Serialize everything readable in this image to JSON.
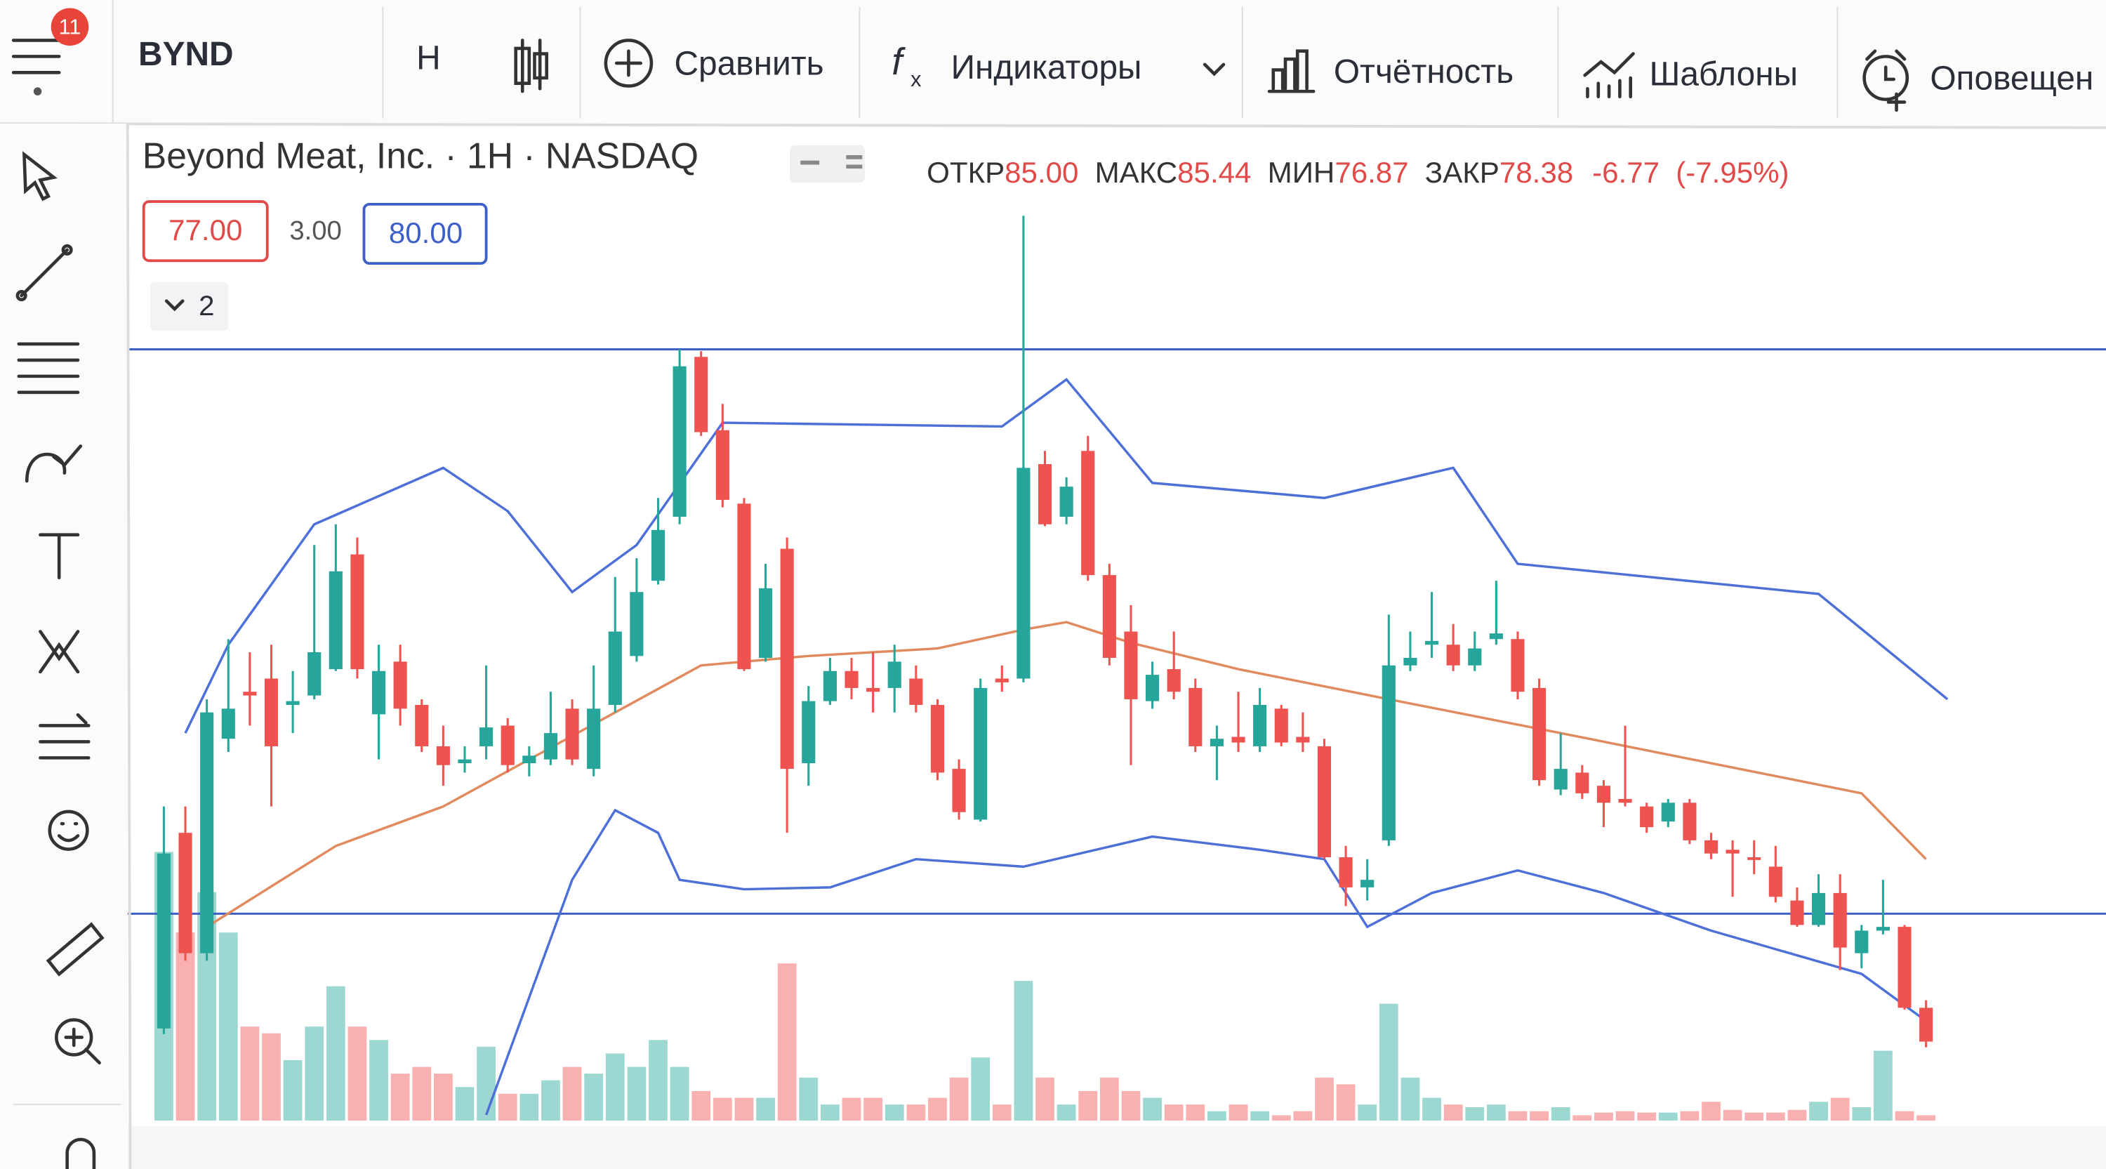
{
  "toolbar": {
    "badge": 11,
    "symbol": "BYND",
    "interval": "H",
    "compare": "Сравнить",
    "indicators": "Индикаторы",
    "financials": "Отчётность",
    "templates": "Шаблоны",
    "alerts": "Оповещен"
  },
  "legend": {
    "title": "Beyond Meat, Inc. · 1H · NASDAQ",
    "open_label": "ОТКР",
    "open": {
      "value": 85,
      "label": "85.00"
    },
    "high_label": "МАКС",
    "high": {
      "value": 85.44,
      "label": "85.44"
    },
    "low_label": "МИН",
    "low": {
      "value": 76.87,
      "label": "76.87"
    },
    "close_label": "ЗАКР",
    "close": {
      "value": 78.38,
      "label": "78.38"
    },
    "change": -6.77,
    "change_pct": {
      "value": -7.95,
      "label": "(-7.95%)"
    }
  },
  "range_tool": {
    "low": {
      "value": 77,
      "label": "77.00"
    },
    "diff": {
      "value": 3,
      "label": "3.00"
    },
    "high": {
      "value": 80,
      "label": "80.00"
    }
  },
  "collapse_count": 2,
  "chart_data": {
    "type": "candlestick",
    "ylim": [
      75.9,
      80.9
    ],
    "volume_ylim": [
      0,
      220
    ],
    "up_color": "#26a69a",
    "down_color": "#ef5350",
    "candles": [
      [
        76.39,
        77.57,
        76.36,
        77.32
      ],
      [
        77.43,
        77.57,
        76.75,
        76.79
      ],
      [
        76.79,
        78.14,
        76.75,
        78.07
      ],
      [
        77.93,
        78.46,
        77.86,
        78.09
      ],
      [
        78.18,
        78.39,
        78.0,
        78.16
      ],
      [
        78.25,
        78.43,
        77.57,
        77.89
      ],
      [
        78.11,
        78.29,
        77.96,
        78.13
      ],
      [
        78.16,
        78.96,
        78.14,
        78.39
      ],
      [
        78.3,
        79.07,
        78.29,
        78.82
      ],
      [
        78.91,
        79.0,
        78.25,
        78.3
      ],
      [
        78.06,
        78.43,
        77.82,
        78.29
      ],
      [
        78.34,
        78.43,
        78.0,
        78.09
      ],
      [
        78.11,
        78.14,
        77.86,
        77.89
      ],
      [
        77.89,
        78.0,
        77.68,
        77.79
      ],
      [
        77.8,
        77.89,
        77.75,
        77.82
      ],
      [
        77.89,
        78.32,
        77.82,
        77.99
      ],
      [
        78.0,
        78.04,
        77.75,
        77.79
      ],
      [
        77.8,
        77.89,
        77.73,
        77.84
      ],
      [
        77.82,
        78.18,
        77.79,
        77.96
      ],
      [
        78.09,
        78.14,
        77.79,
        77.82
      ],
      [
        77.77,
        78.32,
        77.73,
        78.09
      ],
      [
        78.11,
        78.79,
        78.07,
        78.5
      ],
      [
        78.37,
        78.89,
        78.34,
        78.71
      ],
      [
        78.77,
        79.21,
        78.75,
        79.04
      ],
      [
        79.11,
        80.0,
        79.07,
        79.91
      ],
      [
        79.96,
        79.99,
        79.54,
        79.56
      ],
      [
        79.57,
        79.71,
        79.16,
        79.2
      ],
      [
        79.18,
        79.21,
        78.29,
        78.3
      ],
      [
        78.36,
        78.86,
        78.34,
        78.73
      ],
      [
        78.94,
        79.0,
        77.43,
        77.77
      ],
      [
        77.8,
        78.21,
        77.68,
        78.13
      ],
      [
        78.13,
        78.36,
        78.11,
        78.29
      ],
      [
        78.29,
        78.36,
        78.14,
        78.2
      ],
      [
        78.2,
        78.39,
        78.07,
        78.18
      ],
      [
        78.2,
        78.43,
        78.07,
        78.34
      ],
      [
        78.25,
        78.32,
        78.07,
        78.11
      ],
      [
        78.11,
        78.14,
        77.71,
        77.75
      ],
      [
        77.77,
        77.82,
        77.5,
        77.54
      ],
      [
        77.5,
        78.25,
        77.49,
        78.2
      ],
      [
        78.25,
        78.32,
        78.18,
        78.23
      ],
      [
        78.25,
        80.71,
        78.23,
        79.37
      ],
      [
        79.39,
        79.46,
        79.06,
        79.07
      ],
      [
        79.11,
        79.32,
        79.07,
        79.27
      ],
      [
        79.46,
        79.54,
        78.77,
        78.8
      ],
      [
        78.8,
        78.86,
        78.32,
        78.36
      ],
      [
        78.5,
        78.64,
        77.79,
        78.14
      ],
      [
        78.13,
        78.34,
        78.09,
        78.27
      ],
      [
        78.3,
        78.5,
        78.14,
        78.18
      ],
      [
        78.2,
        78.25,
        77.86,
        77.89
      ],
      [
        77.89,
        78.0,
        77.71,
        77.93
      ],
      [
        77.94,
        78.18,
        77.86,
        77.91
      ],
      [
        77.89,
        78.2,
        77.86,
        78.11
      ],
      [
        78.09,
        78.11,
        77.89,
        77.91
      ],
      [
        77.94,
        78.07,
        77.86,
        77.91
      ],
      [
        77.89,
        77.93,
        77.29,
        77.3
      ],
      [
        77.3,
        77.36,
        77.04,
        77.14
      ],
      [
        77.14,
        77.29,
        77.07,
        77.18
      ],
      [
        77.39,
        78.59,
        77.36,
        78.32
      ],
      [
        78.32,
        78.5,
        78.29,
        78.36
      ],
      [
        78.43,
        78.71,
        78.36,
        78.45
      ],
      [
        78.43,
        78.54,
        78.29,
        78.32
      ],
      [
        78.32,
        78.5,
        78.29,
        78.41
      ],
      [
        78.46,
        78.77,
        78.43,
        78.49
      ],
      [
        78.46,
        78.5,
        78.14,
        78.18
      ],
      [
        78.2,
        78.25,
        77.68,
        77.71
      ],
      [
        77.66,
        77.96,
        77.63,
        77.77
      ],
      [
        77.75,
        77.79,
        77.61,
        77.64
      ],
      [
        77.68,
        77.71,
        77.46,
        77.59
      ],
      [
        77.61,
        78.0,
        77.57,
        77.59
      ],
      [
        77.57,
        77.59,
        77.43,
        77.46
      ],
      [
        77.49,
        77.61,
        77.46,
        77.59
      ],
      [
        77.59,
        77.61,
        77.37,
        77.39
      ],
      [
        77.39,
        77.43,
        77.29,
        77.32
      ],
      [
        77.34,
        77.39,
        77.09,
        77.32
      ],
      [
        77.3,
        77.39,
        77.21,
        77.29
      ],
      [
        77.25,
        77.36,
        77.06,
        77.09
      ],
      [
        77.07,
        77.14,
        76.93,
        76.94
      ],
      [
        76.94,
        77.21,
        76.93,
        77.11
      ],
      [
        77.11,
        77.21,
        76.7,
        76.82
      ],
      [
        76.79,
        76.94,
        76.71,
        76.91
      ],
      [
        76.91,
        77.18,
        76.89,
        76.93
      ],
      [
        76.93,
        76.94,
        76.49,
        76.5
      ],
      [
        76.5,
        76.54,
        76.29,
        76.32
      ]
    ],
    "volumes": [
      200,
      140,
      170,
      140,
      70,
      65,
      45,
      70,
      100,
      70,
      60,
      35,
      40,
      35,
      25,
      55,
      20,
      20,
      30,
      40,
      35,
      50,
      40,
      60,
      40,
      22,
      17,
      17,
      17,
      117,
      32,
      12,
      17,
      17,
      12,
      12,
      17,
      32,
      47,
      12,
      104,
      32,
      12,
      22,
      32,
      22,
      17,
      12,
      12,
      7,
      12,
      7,
      4,
      7,
      32,
      27,
      12,
      87,
      32,
      17,
      12,
      10,
      12,
      7,
      7,
      10,
      4,
      6,
      7,
      6,
      6,
      7,
      14,
      8,
      6,
      6,
      8,
      14,
      17,
      10,
      52,
      7,
      4
    ],
    "bands": [
      {
        "color": "#4d6fd8",
        "x": [
          1,
          3,
          7,
          13,
          16,
          19,
          22,
          26,
          39,
          42,
          46,
          54,
          60,
          63,
          77,
          83
        ],
        "values": [
          77.96,
          78.43,
          79.07,
          79.37,
          79.14,
          78.71,
          78.96,
          79.61,
          79.59,
          79.84,
          79.29,
          79.21,
          79.37,
          78.86,
          78.7,
          78.14
        ]
      },
      {
        "color": "#e08a5e",
        "x": [
          2,
          8,
          13,
          17,
          21,
          25,
          30,
          36,
          40,
          42,
          45,
          50,
          57,
          65,
          72,
          79,
          82
        ],
        "values": [
          76.93,
          77.36,
          77.57,
          77.82,
          78.07,
          78.32,
          78.37,
          78.41,
          78.51,
          78.55,
          78.44,
          78.3,
          78.14,
          77.96,
          77.8,
          77.64,
          77.29
        ]
      },
      {
        "color": "#4d6fd8",
        "x": [
          15,
          19,
          21,
          23,
          24,
          27,
          31,
          35,
          40,
          46,
          51,
          54,
          56,
          59,
          63,
          67,
          72,
          79,
          82
        ],
        "values": [
          75.93,
          77.18,
          77.55,
          77.43,
          77.18,
          77.13,
          77.14,
          77.29,
          77.25,
          77.41,
          77.34,
          77.29,
          76.93,
          77.11,
          77.23,
          77.11,
          76.91,
          76.68,
          76.43
        ]
      }
    ]
  }
}
